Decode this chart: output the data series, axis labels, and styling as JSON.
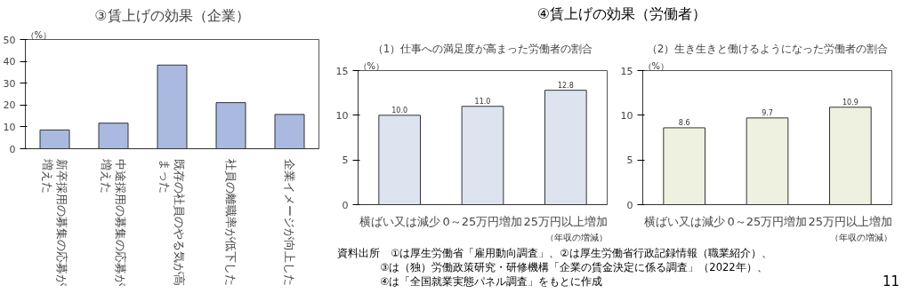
{
  "chart_data": [
    {
      "type": "bar",
      "title": "③賃上げの効果（企業）",
      "ylabel": "（%）",
      "categories": [
        "新卒採用の募集の応募が増えた",
        "中途採用の募集の応募が増えた",
        "既存の社員のやる気が高まった",
        "社員の離職率が低下した",
        "企業イメージが向上した"
      ],
      "values": [
        8.6,
        11.7,
        38.3,
        21.1,
        15.7
      ],
      "color": "#a9b9e0",
      "ylim": [
        0,
        50
      ],
      "yticks": [
        0,
        10,
        20,
        30,
        40,
        50
      ]
    },
    {
      "type": "bar",
      "title": "④賃上げの効果（労働者）",
      "subtitle": "（1）仕事への満足度が高まった労働者の割合",
      "ylabel": "（%）",
      "xlabel": "（年収の増減）",
      "categories": [
        "横ばい又は減少",
        "0～25万円増加",
        "25万円以上増加"
      ],
      "values": [
        10.0,
        11.0,
        12.8
      ],
      "value_labels": [
        "10.0",
        "11.0",
        "12.8"
      ],
      "color": "#dde4f0",
      "ylim": [
        0,
        15
      ],
      "yticks": [
        0,
        5,
        10,
        15
      ]
    },
    {
      "type": "bar",
      "subtitle": "（2）生き生きと働けるようになった労働者の割合",
      "ylabel": "（%）",
      "xlabel": "（年収の増減）",
      "categories": [
        "横ばい又は減少",
        "0～25万円増加",
        "25万円以上増加"
      ],
      "values": [
        8.6,
        9.7,
        10.9
      ],
      "color": "#eef1e0",
      "ylim": [
        0,
        15
      ],
      "yticks": [
        0,
        5,
        10,
        15
      ],
      "data_labels": true,
      "annotations": [
        "資料出所　①は厚生労働省「雇用動向調査」、②は厚生労働省行政記録情報（職業紹介）、",
        "③は（独）労働政策研究・研修機構「企業の賃金決定に係る調査」（2022年）、",
        "④は「全国就業実態パネル調査」をもとに作成",
        "11"
      ]
    }
  ]
}
